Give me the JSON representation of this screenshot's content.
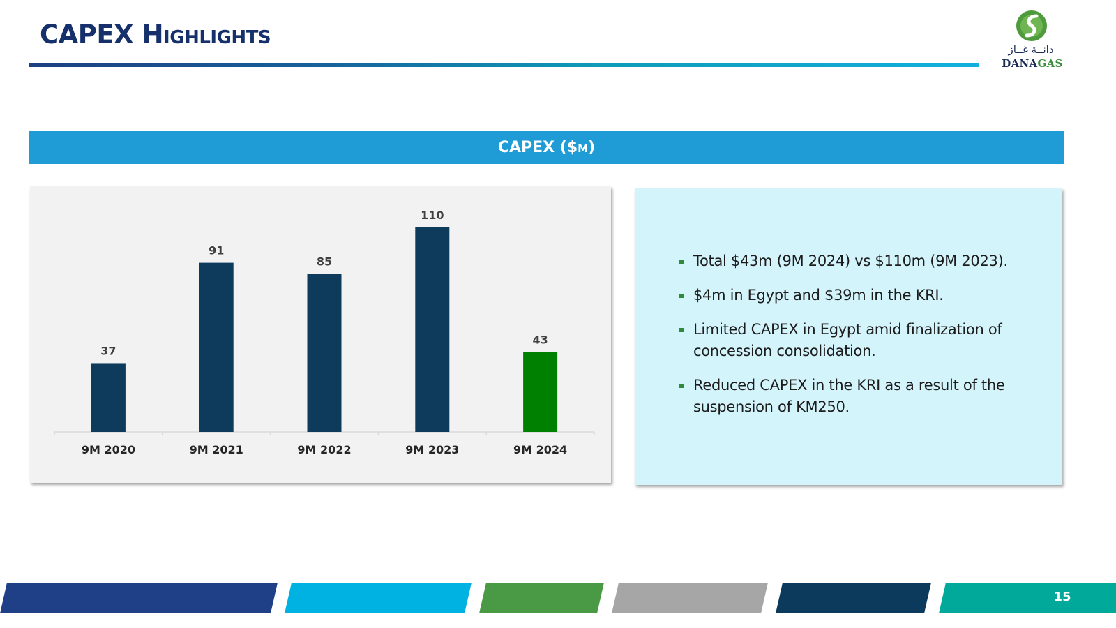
{
  "slide": {
    "title": "CAPEX Highlights",
    "page_number": "15"
  },
  "logo": {
    "arabic": "دانــة غــاز",
    "latin_part1": "DANA",
    "latin_part2": "GAS"
  },
  "section": {
    "banner": "CAPEX ($m)"
  },
  "colors": {
    "title": "#15306b",
    "banner": "#1f9bd6",
    "bar_primary": "#0e3a5c",
    "bar_highlight": "#008000",
    "panel_bg": "#f2f2f2",
    "bullet_bg": "#d4f4fc",
    "footer": [
      "#1f3f86",
      "#00b2e2",
      "#4a9a45",
      "#a6a6a6",
      "#0b3a5d",
      "#00a999"
    ]
  },
  "chart_data": {
    "type": "bar",
    "title": "CAPEX ($m)",
    "categories": [
      "9M 2020",
      "9M 2021",
      "9M 2022",
      "9M 2023",
      "9M 2024"
    ],
    "values": [
      37,
      91,
      85,
      110,
      43
    ],
    "data_labels": [
      "37",
      "91",
      "85",
      "110",
      "43"
    ],
    "highlight_index": 4,
    "ylim": [
      0,
      110
    ],
    "grid": false,
    "legend": "none"
  },
  "bullets": [
    "Total $43m (9M 2024) vs $110m (9M 2023).",
    "$4m in Egypt and $39m in the KRI.",
    "Limited CAPEX in Egypt amid finalization of concession consolidation.",
    "Reduced CAPEX in the KRI as a result of the suspension of KM250."
  ]
}
